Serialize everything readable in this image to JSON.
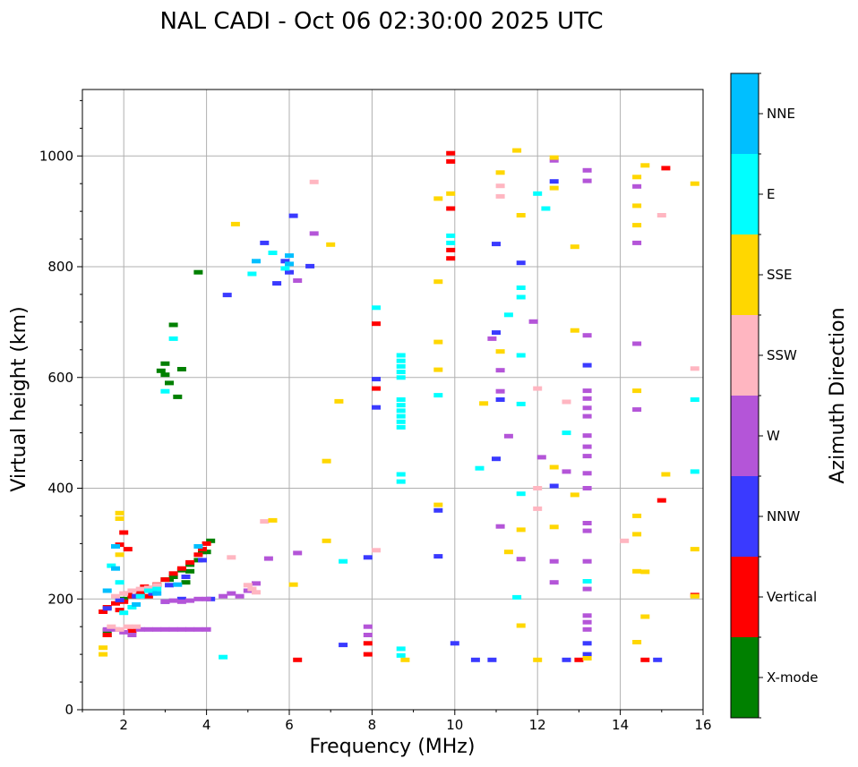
{
  "chart_data": {
    "type": "scatter",
    "title": "NAL CADI - Oct 06 02:30:00 2025 UTC",
    "xlabel": "Frequency (MHz)",
    "ylabel": "Virtual height (km)",
    "xlim": [
      1,
      16
    ],
    "ylim": [
      0,
      1120
    ],
    "xticks": [
      2,
      4,
      6,
      8,
      10,
      12,
      14,
      16
    ],
    "xtick_labels": [
      "2",
      "4",
      "6",
      "8",
      "10",
      "12",
      "14",
      "16"
    ],
    "yticks": [
      0,
      200,
      400,
      600,
      800,
      1000
    ],
    "ytick_labels": [
      "0",
      "200",
      "400",
      "600",
      "800",
      "1000"
    ],
    "grid": true,
    "colorbar": {
      "label": "Azimuth Direction",
      "categories": [
        "X-mode",
        "Vertical",
        "NNW",
        "W",
        "SSW",
        "SSE",
        "E",
        "NNE"
      ],
      "colors": [
        "#008000",
        "#ff0000",
        "#3a3aff",
        "#b455d8",
        "#ffb6c1",
        "#ffd700",
        "#00ffff",
        "#00bfff"
      ]
    },
    "series": [
      {
        "name": "X-mode",
        "color": "#008000",
        "points": [
          [
            2.0,
            200
          ],
          [
            2.2,
            205
          ],
          [
            2.6,
            220
          ],
          [
            2.8,
            225
          ],
          [
            3.0,
            235
          ],
          [
            3.2,
            240
          ],
          [
            3.4,
            252
          ],
          [
            3.6,
            262
          ],
          [
            3.8,
            270
          ],
          [
            4.0,
            285
          ],
          [
            4.1,
            305
          ],
          [
            3.9,
            285
          ],
          [
            3.5,
            230
          ],
          [
            3.1,
            235
          ],
          [
            2.9,
            612
          ],
          [
            3.0,
            605
          ],
          [
            3.2,
            695
          ],
          [
            3.1,
            590
          ],
          [
            3.3,
            565
          ],
          [
            3.4,
            615
          ],
          [
            3.0,
            625
          ],
          [
            3.8,
            790
          ],
          [
            1.6,
            143
          ],
          [
            1.6,
            135
          ],
          [
            3.6,
            250
          ],
          [
            2.4,
            210
          ]
        ]
      },
      {
        "name": "Vertical",
        "color": "#ff0000",
        "points": [
          [
            1.5,
            177
          ],
          [
            1.6,
            185
          ],
          [
            1.8,
            192
          ],
          [
            1.9,
            180
          ],
          [
            2.0,
            195
          ],
          [
            2.1,
            210
          ],
          [
            2.2,
            205
          ],
          [
            2.3,
            215
          ],
          [
            2.4,
            212
          ],
          [
            2.5,
            222
          ],
          [
            2.6,
            205
          ],
          [
            2.8,
            226
          ],
          [
            3.0,
            235
          ],
          [
            3.2,
            246
          ],
          [
            3.4,
            255
          ],
          [
            3.6,
            266
          ],
          [
            3.8,
            280
          ],
          [
            4.0,
            300
          ],
          [
            1.6,
            135
          ],
          [
            2.2,
            142
          ],
          [
            1.9,
            298
          ],
          [
            2.0,
            320
          ],
          [
            2.1,
            290
          ],
          [
            6.2,
            90
          ],
          [
            8.1,
            697
          ],
          [
            8.1,
            580
          ],
          [
            7.9,
            120
          ],
          [
            7.9,
            100
          ],
          [
            9.9,
            1005
          ],
          [
            9.9,
            990
          ],
          [
            9.9,
            905
          ],
          [
            9.9,
            830
          ],
          [
            9.9,
            815
          ],
          [
            15.1,
            978
          ],
          [
            15.0,
            378
          ],
          [
            14.6,
            90
          ],
          [
            15.8,
            207
          ],
          [
            13.0,
            90
          ],
          [
            2.5,
            215
          ],
          [
            3.9,
            290
          ]
        ]
      },
      {
        "name": "NNW",
        "color": "#3a3aff",
        "points": [
          [
            1.6,
            183
          ],
          [
            1.9,
            198
          ],
          [
            2.3,
            205
          ],
          [
            2.7,
            210
          ],
          [
            3.1,
            225
          ],
          [
            3.5,
            240
          ],
          [
            3.9,
            270
          ],
          [
            4.1,
            200
          ],
          [
            3.4,
            200
          ],
          [
            3.0,
            195
          ],
          [
            4.5,
            749
          ],
          [
            5.4,
            843
          ],
          [
            5.7,
            770
          ],
          [
            5.9,
            810
          ],
          [
            6.0,
            790
          ],
          [
            6.1,
            892
          ],
          [
            6.5,
            801
          ],
          [
            7.3,
            117
          ],
          [
            7.9,
            275
          ],
          [
            8.1,
            546
          ],
          [
            8.1,
            597
          ],
          [
            9.6,
            277
          ],
          [
            9.6,
            360
          ],
          [
            10.0,
            120
          ],
          [
            10.5,
            90
          ],
          [
            10.9,
            90
          ],
          [
            11.0,
            841
          ],
          [
            11.0,
            681
          ],
          [
            11.0,
            453
          ],
          [
            11.1,
            560
          ],
          [
            11.6,
            807
          ],
          [
            12.4,
            404
          ],
          [
            12.4,
            954
          ],
          [
            13.2,
            622
          ],
          [
            13.2,
            120
          ],
          [
            13.2,
            100
          ],
          [
            12.7,
            90
          ],
          [
            14.9,
            90
          ]
        ]
      },
      {
        "name": "W",
        "color": "#b455d8",
        "points": [
          [
            1.6,
            145
          ],
          [
            1.8,
            145
          ],
          [
            2.0,
            140
          ],
          [
            2.2,
            135
          ],
          [
            2.4,
            145
          ],
          [
            2.6,
            145
          ],
          [
            2.8,
            145
          ],
          [
            3.0,
            145
          ],
          [
            3.2,
            145
          ],
          [
            3.4,
            145
          ],
          [
            3.6,
            145
          ],
          [
            3.8,
            145
          ],
          [
            4.0,
            145
          ],
          [
            3.0,
            195
          ],
          [
            3.2,
            197
          ],
          [
            3.4,
            195
          ],
          [
            3.6,
            197
          ],
          [
            3.8,
            200
          ],
          [
            4.0,
            200
          ],
          [
            4.4,
            205
          ],
          [
            4.6,
            210
          ],
          [
            4.8,
            205
          ],
          [
            5.0,
            215
          ],
          [
            5.2,
            228
          ],
          [
            5.5,
            273
          ],
          [
            6.2,
            283
          ],
          [
            6.2,
            775
          ],
          [
            6.6,
            860
          ],
          [
            7.9,
            150
          ],
          [
            7.9,
            135
          ],
          [
            10.9,
            670
          ],
          [
            11.1,
            613
          ],
          [
            11.1,
            575
          ],
          [
            11.3,
            494
          ],
          [
            11.6,
            272
          ],
          [
            11.9,
            701
          ],
          [
            12.1,
            456
          ],
          [
            12.4,
            992
          ],
          [
            12.4,
            268
          ],
          [
            12.4,
            230
          ],
          [
            12.7,
            430
          ],
          [
            13.2,
            974
          ],
          [
            13.2,
            955
          ],
          [
            13.2,
            676
          ],
          [
            13.2,
            576
          ],
          [
            13.2,
            562
          ],
          [
            13.2,
            545
          ],
          [
            13.2,
            530
          ],
          [
            13.2,
            495
          ],
          [
            13.2,
            475
          ],
          [
            13.2,
            458
          ],
          [
            13.2,
            427
          ],
          [
            13.2,
            400
          ],
          [
            13.2,
            337
          ],
          [
            13.2,
            323
          ],
          [
            13.2,
            268
          ],
          [
            13.2,
            218
          ],
          [
            13.2,
            170
          ],
          [
            13.2,
            158
          ],
          [
            13.2,
            145
          ],
          [
            14.4,
            945
          ],
          [
            14.4,
            843
          ],
          [
            14.4,
            661
          ],
          [
            14.4,
            542
          ],
          [
            11.1,
            331
          ]
        ]
      },
      {
        "name": "SSW",
        "color": "#ffb6c1",
        "points": [
          [
            1.7,
            150
          ],
          [
            1.9,
            145
          ],
          [
            2.1,
            150
          ],
          [
            2.3,
            150
          ],
          [
            1.8,
            205
          ],
          [
            2.0,
            210
          ],
          [
            2.2,
            215
          ],
          [
            2.4,
            218
          ],
          [
            2.6,
            220
          ],
          [
            2.8,
            225
          ],
          [
            4.6,
            275
          ],
          [
            5.0,
            225
          ],
          [
            5.1,
            218
          ],
          [
            5.2,
            212
          ],
          [
            5.4,
            340
          ],
          [
            6.6,
            953
          ],
          [
            8.1,
            288
          ],
          [
            11.1,
            946
          ],
          [
            11.1,
            927
          ],
          [
            12.0,
            580
          ],
          [
            12.0,
            363
          ],
          [
            12.0,
            400
          ],
          [
            12.7,
            556
          ],
          [
            14.1,
            305
          ],
          [
            15.0,
            893
          ],
          [
            15.8,
            616
          ]
        ]
      },
      {
        "name": "SSE",
        "color": "#ffd700",
        "points": [
          [
            1.5,
            112
          ],
          [
            1.5,
            100
          ],
          [
            1.9,
            355
          ],
          [
            1.9,
            345
          ],
          [
            1.9,
            280
          ],
          [
            4.7,
            877
          ],
          [
            5.6,
            342
          ],
          [
            6.1,
            226
          ],
          [
            6.9,
            305
          ],
          [
            6.9,
            449
          ],
          [
            7.0,
            840
          ],
          [
            7.2,
            557
          ],
          [
            8.8,
            90
          ],
          [
            9.6,
            923
          ],
          [
            9.6,
            773
          ],
          [
            9.6,
            664
          ],
          [
            9.6,
            614
          ],
          [
            9.6,
            370
          ],
          [
            9.9,
            932
          ],
          [
            10.7,
            553
          ],
          [
            11.1,
            970
          ],
          [
            11.1,
            647
          ],
          [
            11.3,
            285
          ],
          [
            11.5,
            1010
          ],
          [
            11.6,
            893
          ],
          [
            11.6,
            325
          ],
          [
            11.6,
            152
          ],
          [
            12.0,
            90
          ],
          [
            12.4,
            997
          ],
          [
            12.4,
            942
          ],
          [
            12.4,
            438
          ],
          [
            12.4,
            330
          ],
          [
            12.9,
            836
          ],
          [
            12.9,
            685
          ],
          [
            12.9,
            388
          ],
          [
            13.2,
            93
          ],
          [
            14.4,
            962
          ],
          [
            14.4,
            910
          ],
          [
            14.4,
            875
          ],
          [
            14.4,
            576
          ],
          [
            14.4,
            350
          ],
          [
            14.4,
            317
          ],
          [
            14.4,
            250
          ],
          [
            14.4,
            122
          ],
          [
            14.6,
            983
          ],
          [
            14.6,
            249
          ],
          [
            14.6,
            168
          ],
          [
            15.1,
            425
          ],
          [
            15.8,
            950
          ],
          [
            15.8,
            290
          ],
          [
            15.8,
            205
          ]
        ]
      },
      {
        "name": "E",
        "color": "#00ffff",
        "points": [
          [
            1.7,
            260
          ],
          [
            1.9,
            230
          ],
          [
            2.0,
            175
          ],
          [
            2.2,
            185
          ],
          [
            2.4,
            205
          ],
          [
            2.6,
            215
          ],
          [
            2.8,
            218
          ],
          [
            3.2,
            670
          ],
          [
            3.0,
            575
          ],
          [
            4.4,
            95
          ],
          [
            5.1,
            787
          ],
          [
            5.6,
            825
          ],
          [
            5.9,
            797
          ],
          [
            7.3,
            268
          ],
          [
            8.1,
            726
          ],
          [
            8.7,
            640
          ],
          [
            8.7,
            630
          ],
          [
            8.7,
            620
          ],
          [
            8.7,
            610
          ],
          [
            8.7,
            600
          ],
          [
            8.7,
            560
          ],
          [
            8.7,
            550
          ],
          [
            8.7,
            540
          ],
          [
            8.7,
            530
          ],
          [
            8.7,
            520
          ],
          [
            8.7,
            510
          ],
          [
            8.7,
            425
          ],
          [
            8.7,
            412
          ],
          [
            8.7,
            110
          ],
          [
            8.7,
            98
          ],
          [
            9.6,
            568
          ],
          [
            9.9,
            856
          ],
          [
            9.9,
            843
          ],
          [
            10.6,
            436
          ],
          [
            11.3,
            713
          ],
          [
            11.5,
            203
          ],
          [
            11.6,
            762
          ],
          [
            11.6,
            745
          ],
          [
            11.6,
            640
          ],
          [
            11.6,
            390
          ],
          [
            11.6,
            552
          ],
          [
            12.0,
            932
          ],
          [
            12.2,
            905
          ],
          [
            12.7,
            500
          ],
          [
            13.2,
            232
          ],
          [
            15.8,
            560
          ],
          [
            15.8,
            430
          ]
        ]
      },
      {
        "name": "NNE",
        "color": "#00bfff",
        "points": [
          [
            1.6,
            215
          ],
          [
            1.8,
            295
          ],
          [
            1.8,
            255
          ],
          [
            2.3,
            190
          ],
          [
            2.8,
            210
          ],
          [
            3.3,
            226
          ],
          [
            3.8,
            295
          ],
          [
            5.2,
            810
          ],
          [
            6.0,
            805
          ],
          [
            6.0,
            820
          ]
        ]
      }
    ]
  }
}
